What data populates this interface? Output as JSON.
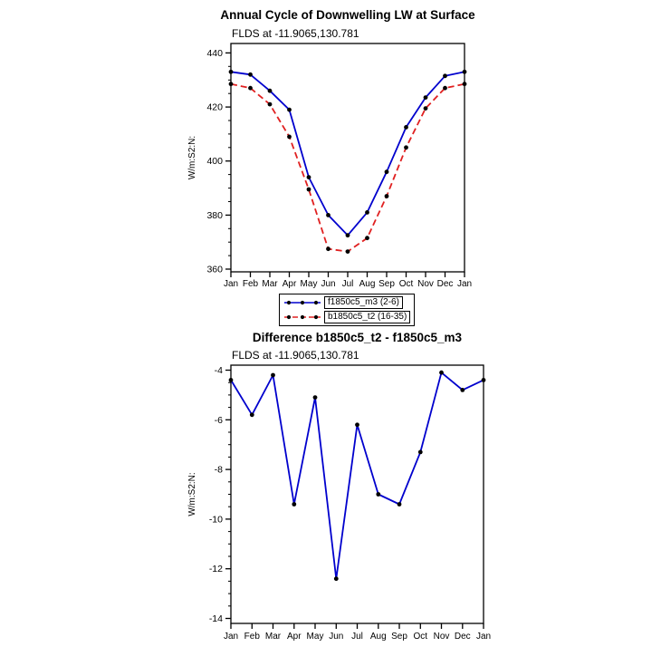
{
  "page": {
    "background": "#ffffff"
  },
  "chart_data": [
    {
      "type": "line",
      "title": "Annual Cycle of Downwelling LW at Surface",
      "subtitle": "FLDS at -11.9065,130.781",
      "ylabel": "W/m:S2:N:",
      "xlabel": "",
      "categories": [
        "Jan",
        "Feb",
        "Mar",
        "Apr",
        "May",
        "Jun",
        "Jul",
        "Aug",
        "Sep",
        "Oct",
        "Nov",
        "Dec",
        "Jan"
      ],
      "ylim": [
        359,
        443.5
      ],
      "yticks": [
        360,
        380,
        400,
        420,
        440
      ],
      "yminor_step": 5,
      "grid": false,
      "marker_color": "#000000",
      "legend_position": "below-center",
      "series": [
        {
          "name": "f1850c5_m3 (2-6)",
          "color": "#0000cd",
          "style": "solid",
          "values": [
            433,
            432,
            426,
            419,
            394,
            380,
            372.5,
            381,
            396,
            412.5,
            423.5,
            431.5,
            433
          ]
        },
        {
          "name": "b1850c5_t2 (16-35)",
          "color": "#e02020",
          "style": "dashed",
          "values": [
            428.5,
            427,
            421,
            409,
            389.5,
            367.5,
            366.5,
            371.5,
            387,
            405,
            419.5,
            427,
            428.5
          ]
        }
      ]
    },
    {
      "type": "line",
      "title": "Difference b1850c5_t2 - f1850c5_m3",
      "subtitle": "FLDS at -11.9065,130.781",
      "ylabel": "W/m:S2:N:",
      "xlabel": "",
      "categories": [
        "Jan",
        "Feb",
        "Mar",
        "Apr",
        "May",
        "Jun",
        "Jul",
        "Aug",
        "Sep",
        "Oct",
        "Nov",
        "Dec",
        "Jan"
      ],
      "ylim": [
        -14.2,
        -3.8
      ],
      "yticks": [
        -14,
        -12,
        -10,
        -8,
        -6,
        -4
      ],
      "yminor_step": 0.5,
      "grid": false,
      "marker_color": "#000000",
      "legend_position": "none",
      "series": [
        {
          "name": "b1850c5_t2 - f1850c5_m3",
          "color": "#0000cd",
          "style": "solid",
          "values": [
            -4.4,
            -5.8,
            -4.2,
            -9.4,
            -5.1,
            -12.4,
            -6.2,
            -9.0,
            -9.4,
            -7.3,
            -4.1,
            -4.8,
            -4.4
          ]
        }
      ]
    }
  ]
}
